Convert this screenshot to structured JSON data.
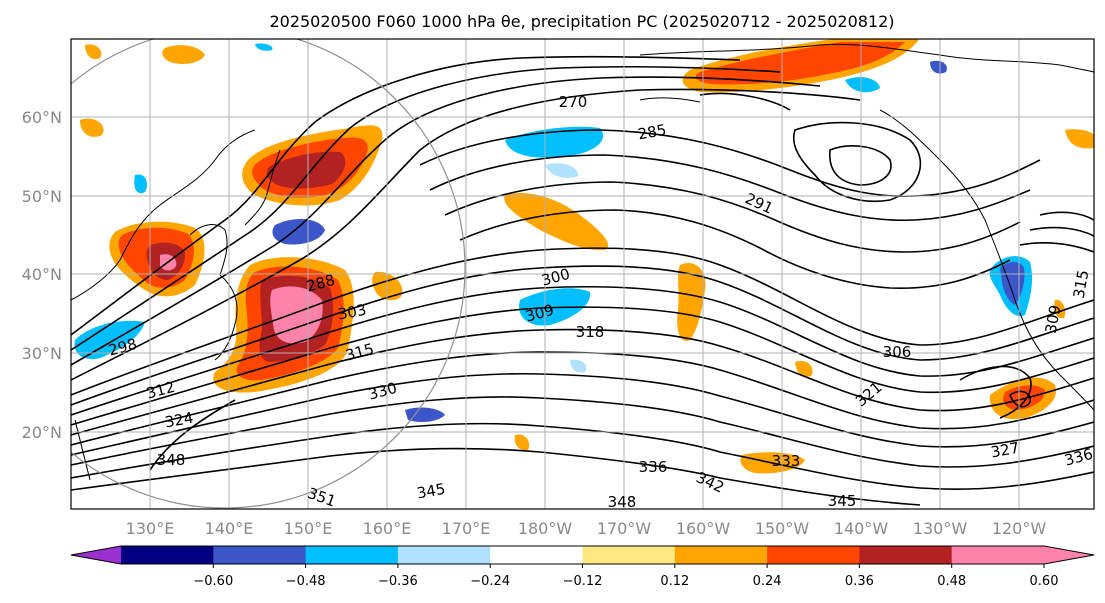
{
  "title": "2025020500 F060 1000 hPa θe, precipitation PC (2025020712 - 2025020812)",
  "map": {
    "lat_labels": [
      "20°N",
      "30°N",
      "40°N",
      "50°N",
      "60°N"
    ],
    "lon_labels": [
      "130°E",
      "140°E",
      "150°E",
      "160°E",
      "170°E",
      "180°W",
      "170°W",
      "160°W",
      "150°W",
      "140°W",
      "130°W",
      "120°W"
    ],
    "contour_labels": [
      "270",
      "285",
      "291",
      "300",
      "309",
      "318",
      "306",
      "321",
      "288",
      "303",
      "298",
      "315",
      "312",
      "330",
      "324",
      "348",
      "351",
      "345",
      "348",
      "336",
      "342",
      "345",
      "333",
      "327",
      "336",
      "315",
      "309"
    ]
  },
  "colorbar": {
    "ticks": [
      "−0.60",
      "−0.48",
      "−0.36",
      "−0.24",
      "−0.12",
      "0.12",
      "0.24",
      "0.36",
      "0.48",
      "0.60"
    ],
    "colors": [
      "#9b30d0",
      "#000080",
      "#3a56c8",
      "#00bfff",
      "#b0e2ff",
      "#ffffff",
      "#ffe882",
      "#ffa500",
      "#ff4500",
      "#b22222",
      "#ff82ab",
      "#ff82ab"
    ]
  }
}
